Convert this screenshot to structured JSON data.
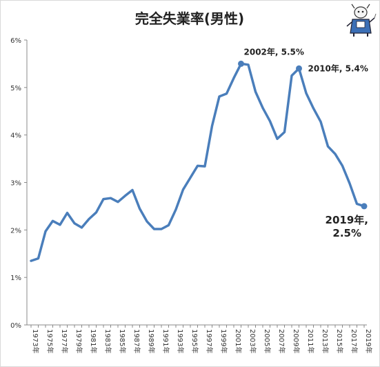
{
  "chart_data": {
    "type": "line",
    "title": "完全失業率(男性)",
    "xlabel": "",
    "ylabel": "",
    "ylim": [
      0,
      6
    ],
    "yticks": [
      "0%",
      "1%",
      "2%",
      "3%",
      "4%",
      "5%",
      "6%"
    ],
    "x_tick_labels": [
      "1973年",
      "1975年",
      "1977年",
      "1979年",
      "1981年",
      "1983年",
      "1985年",
      "1987年",
      "1989年",
      "1991年",
      "1993年",
      "1995年",
      "1997年",
      "1999年",
      "2001年",
      "2003年",
      "2005年",
      "2007年",
      "2009年",
      "2011年",
      "2013年",
      "2015年",
      "2017年",
      "2019年"
    ],
    "grid": false,
    "series": [
      {
        "color": "#4a7ebb",
        "x": [
          1973,
          1974,
          1975,
          1976,
          1977,
          1978,
          1979,
          1980,
          1981,
          1982,
          1983,
          1984,
          1985,
          1986,
          1987,
          1988,
          1989,
          1990,
          1991,
          1992,
          1993,
          1994,
          1995,
          1996,
          1997,
          1998,
          1999,
          2000,
          2001,
          2002,
          2003,
          2004,
          2005,
          2006,
          2007,
          2008,
          2009,
          2010,
          2011,
          2012,
          2013,
          2014,
          2015,
          2016,
          2017,
          2018,
          2019
        ],
        "values": [
          1.35,
          1.4,
          1.97,
          2.19,
          2.11,
          2.36,
          2.14,
          2.05,
          2.23,
          2.37,
          2.65,
          2.67,
          2.59,
          2.72,
          2.84,
          2.45,
          2.18,
          2.02,
          2.02,
          2.1,
          2.43,
          2.85,
          3.1,
          3.35,
          3.34,
          4.19,
          4.81,
          4.87,
          5.2,
          5.5,
          5.48,
          4.91,
          4.57,
          4.29,
          3.92,
          4.06,
          5.25,
          5.4,
          4.88,
          4.56,
          4.28,
          3.76,
          3.6,
          3.35,
          2.98,
          2.55,
          2.5
        ]
      }
    ],
    "highlights": [
      {
        "x": 2002,
        "y": 5.5,
        "label": "2002年, 5.5%"
      },
      {
        "x": 2010,
        "y": 5.4,
        "label": "2010年, 5.4%"
      },
      {
        "x": 2019,
        "y": 2.5,
        "label_line1": "2019年,",
        "label_line2": "2.5%"
      }
    ]
  },
  "colors": {
    "line": "#4a7ebb",
    "axis": "#888888",
    "background": "#ffffff"
  },
  "mascot_icon": "mascot-character-icon"
}
